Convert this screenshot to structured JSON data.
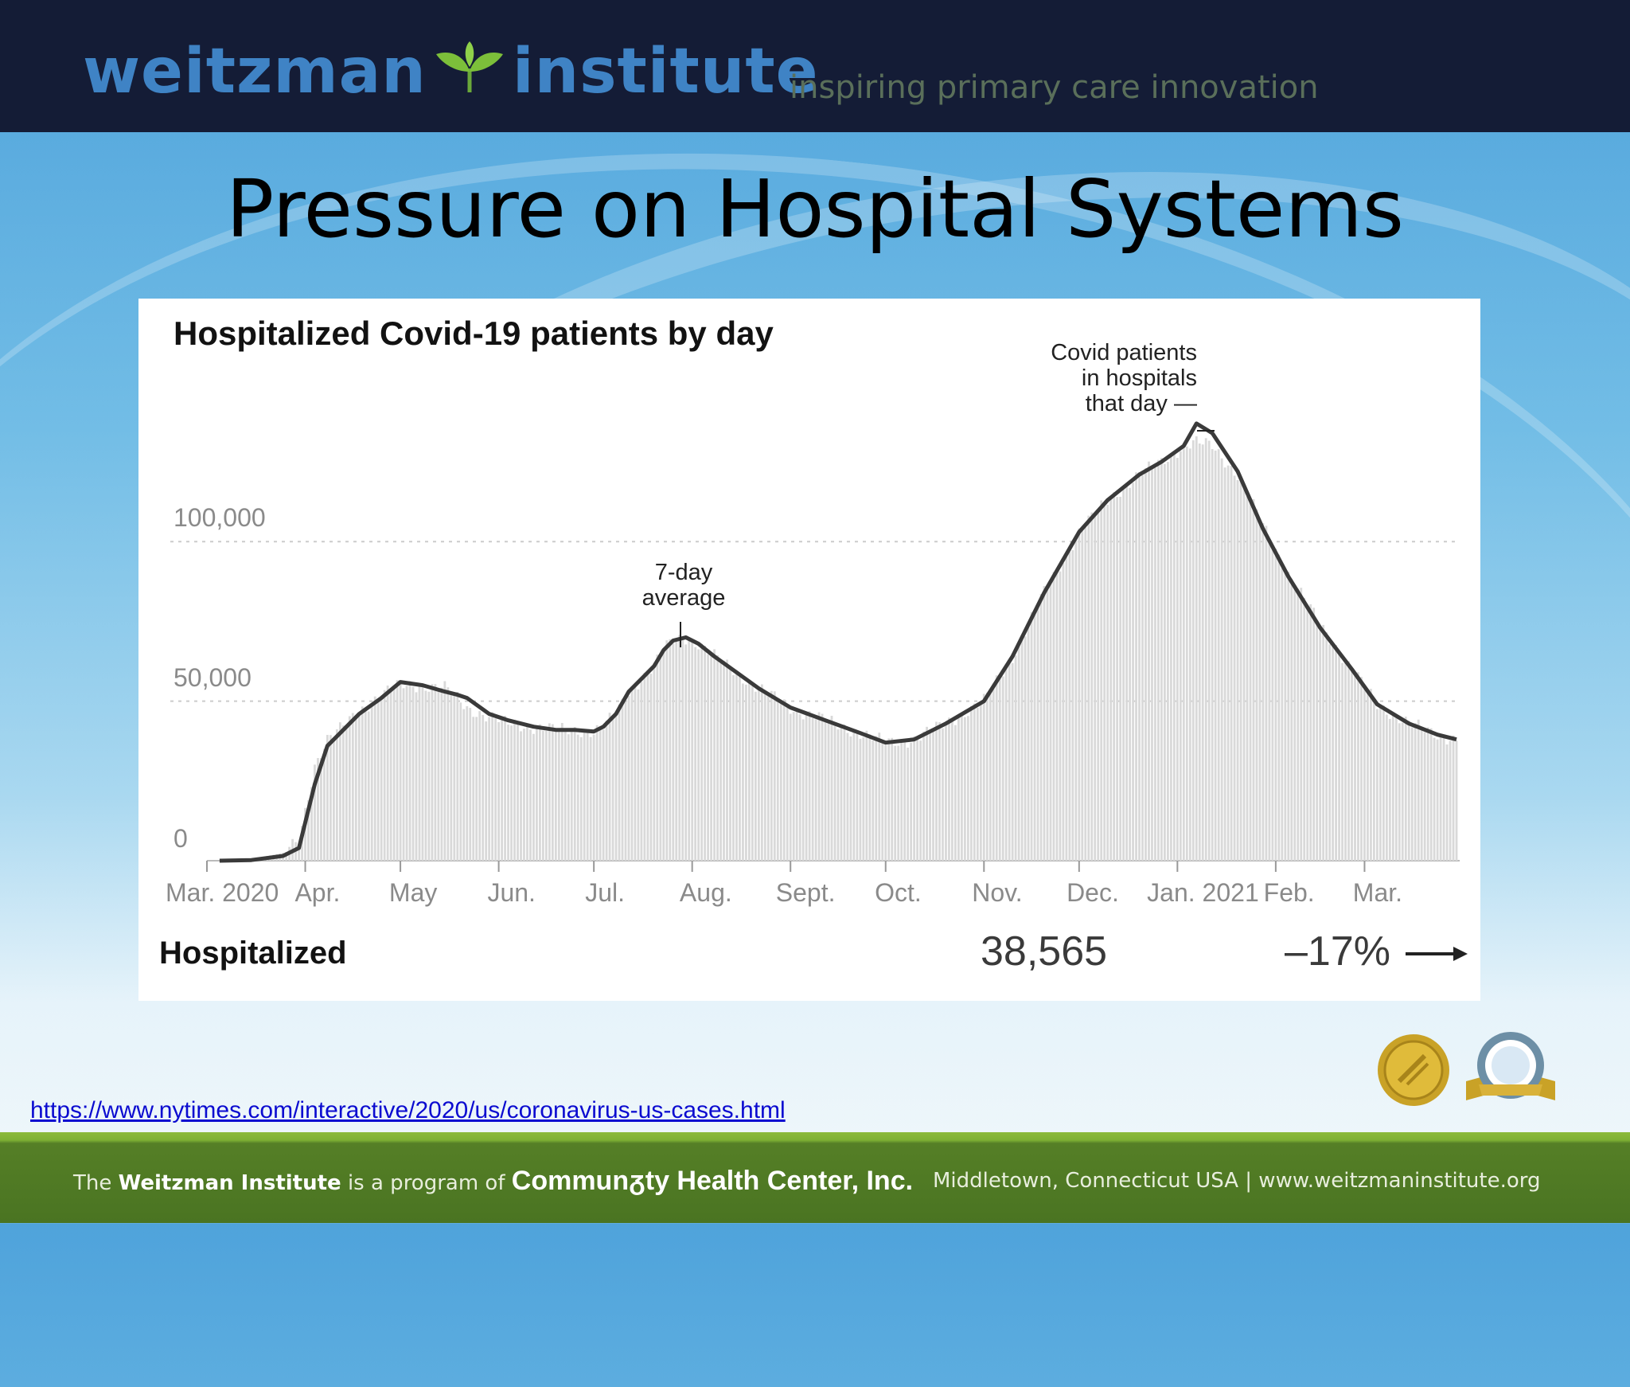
{
  "header": {
    "brand_left": "weitzman",
    "brand_right": "institute",
    "tagline": "inspiring primary care innovation"
  },
  "slide_title": "Pressure on Hospital Systems",
  "chart_data": {
    "type": "area",
    "title": "Hospitalized Covid-19 patients by day",
    "ylim": [
      0,
      140000
    ],
    "yticks": [
      0,
      50000,
      100000
    ],
    "ytick_labels": [
      "0",
      "50,000",
      "100,000"
    ],
    "grid": true,
    "x_start": "2020-03-01",
    "x_end": "2021-03-31",
    "xtick_labels": [
      {
        "label": "Mar. 2020",
        "date": "2020-03-01"
      },
      {
        "label": "Apr.",
        "date": "2020-04-01"
      },
      {
        "label": "May",
        "date": "2020-05-01"
      },
      {
        "label": "Jun.",
        "date": "2020-06-01"
      },
      {
        "label": "Jul.",
        "date": "2020-07-01"
      },
      {
        "label": "Aug.",
        "date": "2020-08-01"
      },
      {
        "label": "Sept.",
        "date": "2020-09-01"
      },
      {
        "label": "Oct.",
        "date": "2020-10-01"
      },
      {
        "label": "Nov.",
        "date": "2020-11-01"
      },
      {
        "label": "Dec.",
        "date": "2020-12-01"
      },
      {
        "label": "Jan. 2021",
        "date": "2021-01-01"
      },
      {
        "label": "Feb.",
        "date": "2021-02-01"
      },
      {
        "label": "Mar.",
        "date": "2021-03-01"
      }
    ],
    "series": [
      {
        "style": "bars",
        "x": [
          "2020-03-05",
          "2020-03-15",
          "2020-03-25",
          "2020-03-30",
          "2020-04-04",
          "2020-04-08",
          "2020-04-12",
          "2020-04-18",
          "2020-04-25",
          "2020-05-01",
          "2020-05-08",
          "2020-05-15",
          "2020-05-19",
          "2020-05-22",
          "2020-05-29",
          "2020-06-04",
          "2020-06-12",
          "2020-06-19",
          "2020-06-25",
          "2020-07-01",
          "2020-07-04",
          "2020-07-08",
          "2020-07-12",
          "2020-07-17",
          "2020-07-20",
          "2020-07-23",
          "2020-07-26",
          "2020-07-30",
          "2020-08-03",
          "2020-08-08",
          "2020-08-15",
          "2020-08-22",
          "2020-09-01",
          "2020-09-12",
          "2020-09-23",
          "2020-10-01",
          "2020-10-10",
          "2020-10-20",
          "2020-11-01",
          "2020-11-10",
          "2020-11-20",
          "2020-12-01",
          "2020-12-10",
          "2020-12-20",
          "2020-12-27",
          "2021-01-03",
          "2021-01-07",
          "2021-01-12",
          "2021-01-20",
          "2021-01-28",
          "2021-02-05",
          "2021-02-15",
          "2021-02-25",
          "2021-03-05",
          "2021-03-15",
          "2021-03-24",
          "2021-03-30"
        ],
        "values": [
          0,
          400,
          2500,
          6000,
          30000,
          38000,
          41000,
          47000,
          52000,
          55000,
          55000,
          54000,
          51000,
          48000,
          45000,
          43000,
          42000,
          41000,
          41000,
          40500,
          42000,
          46000,
          53000,
          58000,
          61000,
          66000,
          69000,
          70000,
          68000,
          64000,
          59000,
          54000,
          48000,
          44000,
          40000,
          37000,
          38000,
          43000,
          50000,
          64000,
          84000,
          103000,
          113000,
          121000,
          125000,
          130000,
          131000,
          130000,
          121000,
          105000,
          90000,
          74000,
          60000,
          49000,
          43000,
          39500,
          38000
        ]
      },
      {
        "name": "7-day average",
        "style": "line",
        "x": [
          "2020-03-05",
          "2020-03-15",
          "2020-03-25",
          "2020-03-30",
          "2020-04-04",
          "2020-04-08",
          "2020-04-12",
          "2020-04-18",
          "2020-04-25",
          "2020-05-01",
          "2020-05-08",
          "2020-05-15",
          "2020-05-19",
          "2020-05-22",
          "2020-05-29",
          "2020-06-04",
          "2020-06-12",
          "2020-06-19",
          "2020-06-25",
          "2020-07-01",
          "2020-07-04",
          "2020-07-08",
          "2020-07-12",
          "2020-07-17",
          "2020-07-20",
          "2020-07-23",
          "2020-07-26",
          "2020-07-30",
          "2020-08-03",
          "2020-08-08",
          "2020-08-15",
          "2020-08-22",
          "2020-09-01",
          "2020-09-12",
          "2020-09-23",
          "2020-10-01",
          "2020-10-10",
          "2020-10-20",
          "2020-11-01",
          "2020-11-10",
          "2020-11-20",
          "2020-12-01",
          "2020-12-10",
          "2020-12-20",
          "2020-12-27",
          "2021-01-03",
          "2021-01-07",
          "2021-01-12",
          "2021-01-20",
          "2021-01-28",
          "2021-02-05",
          "2021-02-15",
          "2021-02-25",
          "2021-03-05",
          "2021-03-15",
          "2021-03-24",
          "2021-03-30"
        ],
        "values": [
          0,
          200,
          1500,
          4000,
          24000,
          36000,
          40000,
          46000,
          51000,
          56000,
          55000,
          53000,
          52000,
          51000,
          46000,
          44000,
          42000,
          41000,
          41000,
          40500,
          42000,
          46000,
          53000,
          58000,
          61000,
          66000,
          69000,
          70000,
          68000,
          64000,
          59000,
          54000,
          48000,
          44000,
          40000,
          37000,
          38000,
          43000,
          50000,
          64000,
          84000,
          103000,
          113000,
          121000,
          125000,
          130000,
          137000,
          134000,
          122000,
          104000,
          89000,
          73000,
          60000,
          49000,
          43000,
          39500,
          38000
        ]
      }
    ],
    "annotations": {
      "peak": "Covid patients in hospitals that day —",
      "average": "7-day average"
    },
    "summary": {
      "label": "Hospitalized",
      "value": "38,565",
      "change": "–17%"
    },
    "colors": {
      "bars": "#d9d9d9",
      "line": "#3a3a3a",
      "grid": "#cccccc"
    }
  },
  "source_url": "https://www.nytimes.com/interactive/2020/us/coronavirus-us-cases.html",
  "footer": {
    "left_prefix": "The",
    "left_org": "Weitzman Institute",
    "left_mid": "is a program of",
    "left_parent": "Communᵹty Health Center, Inc.",
    "right": "Middletown, Connecticut USA  |  www.weitzmaninstitute.org"
  },
  "icons": [
    "leaf-icon",
    "joint-commission-seal-icon",
    "ncqa-seal-icon",
    "right-arrow-icon"
  ]
}
